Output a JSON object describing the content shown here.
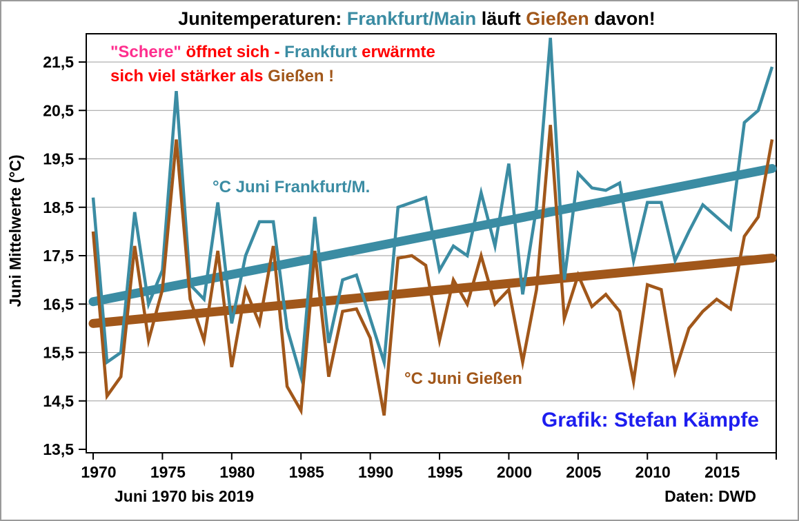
{
  "frame": {
    "background": "#ffffff",
    "border_color": "#9a9a9a"
  },
  "colors": {
    "frankfurt_teal": "#3b8ca3",
    "giessen_brown": "#a1571a",
    "annotation_red": "#ff0000",
    "annotation_pink": "#ff2e8e",
    "credit_blue": "#1d1def",
    "grid_gray": "#9b9b9b",
    "axis_black": "#000000"
  },
  "title": {
    "segments": [
      {
        "text": "Junitemperaturen: ",
        "color": "#000000"
      },
      {
        "text": "Frankfurt/Main",
        "color": "#3b8ca3"
      },
      {
        "text": " läuft ",
        "color": "#000000"
      },
      {
        "text": "Gießen",
        "color": "#a1571a"
      },
      {
        "text": " davon!",
        "color": "#000000"
      }
    ]
  },
  "annotation": {
    "line1": [
      {
        "text": "\"Schere\"",
        "color": "#ff2e8e"
      },
      {
        "text": " öffnet sich - ",
        "color": "#ff0000"
      },
      {
        "text": "Frankfurt",
        "color": "#3b8ca3"
      },
      {
        "text": " erwärmte",
        "color": "#ff0000"
      }
    ],
    "line2": [
      {
        "text": "sich viel stärker als ",
        "color": "#ff0000"
      },
      {
        "text": "Gießen !",
        "color": "#a1571a"
      }
    ]
  },
  "legend": {
    "frankfurt": {
      "label": "°C Juni Frankfurt/M.",
      "color": "#3b8ca3"
    },
    "giessen": {
      "label": "°C Juni Gießen",
      "color": "#a1571a"
    }
  },
  "credit": {
    "text": "Grafik: Stefan Kämpfe",
    "color": "#1d1def"
  },
  "footer": {
    "left": "Juni 1970 bis 2019",
    "right": "Daten: DWD"
  },
  "y_axis": {
    "title": "Juni Mittelwerte (°C)",
    "tick_labels": [
      "21,5",
      "20,5",
      "19,5",
      "18,5",
      "17,5",
      "16,5",
      "15,5",
      "14,5",
      "13,5"
    ],
    "tick_values": [
      21.5,
      20.5,
      19.5,
      18.5,
      17.5,
      16.5,
      15.5,
      14.5,
      13.5
    ]
  },
  "x_axis": {
    "tick_labels": [
      "1970",
      "1975",
      "1980",
      "1985",
      "1990",
      "1995",
      "2000",
      "2005",
      "2010",
      "2015"
    ],
    "tick_values": [
      1970,
      1975,
      1980,
      1985,
      1990,
      1995,
      2000,
      2005,
      2010,
      2015
    ]
  },
  "chart_data": {
    "type": "line",
    "title": "Junitemperaturen: Frankfurt/Main läuft Gießen davon!",
    "xlabel": "Juni 1970 bis 2019",
    "ylabel": "Juni Mittelwerte (°C)",
    "ylim": [
      13.5,
      22.1
    ],
    "grid": "horizontal",
    "years": [
      1970,
      1971,
      1972,
      1973,
      1974,
      1975,
      1976,
      1977,
      1978,
      1979,
      1980,
      1981,
      1982,
      1983,
      1984,
      1985,
      1986,
      1987,
      1988,
      1989,
      1990,
      1991,
      1992,
      1993,
      1994,
      1995,
      1996,
      1997,
      1998,
      1999,
      2000,
      2001,
      2002,
      2003,
      2004,
      2005,
      2006,
      2007,
      2008,
      2009,
      2010,
      2011,
      2012,
      2013,
      2014,
      2015,
      2016,
      2017,
      2018,
      2019
    ],
    "series": [
      {
        "name": "°C Juni Frankfurt/M.",
        "color": "#3b8ca3",
        "values": [
          18.7,
          15.3,
          15.5,
          18.4,
          16.5,
          17.2,
          20.9,
          16.9,
          16.6,
          18.6,
          16.1,
          17.5,
          18.2,
          18.2,
          16.0,
          15.0,
          18.3,
          15.7,
          17.0,
          17.1,
          16.2,
          15.3,
          18.5,
          18.6,
          18.7,
          17.2,
          17.7,
          17.5,
          18.8,
          17.7,
          19.4,
          16.7,
          18.5,
          22.0,
          17.0,
          19.2,
          18.9,
          18.85,
          19.0,
          17.4,
          18.6,
          18.6,
          17.4,
          18.0,
          18.55,
          18.3,
          18.05,
          20.25,
          20.5,
          21.4
        ]
      },
      {
        "name": "°C Juni Gießen",
        "color": "#a1571a",
        "values": [
          18.0,
          14.6,
          15.0,
          17.7,
          15.75,
          16.8,
          19.9,
          16.6,
          15.75,
          17.6,
          15.2,
          16.8,
          16.1,
          17.7,
          14.8,
          14.3,
          17.6,
          15.0,
          16.35,
          16.4,
          15.8,
          14.2,
          17.45,
          17.5,
          17.3,
          15.75,
          17.0,
          16.5,
          17.5,
          16.5,
          16.8,
          15.3,
          16.8,
          20.2,
          16.2,
          17.1,
          16.45,
          16.7,
          16.35,
          14.9,
          16.9,
          16.8,
          15.1,
          16.0,
          16.35,
          16.6,
          16.4,
          17.9,
          18.3,
          19.9
        ]
      }
    ],
    "trend_lines": [
      {
        "name": "Frankfurt linear trend",
        "color": "#3b8ca3",
        "start_value": 16.55,
        "end_value": 19.3
      },
      {
        "name": "Gießen linear trend",
        "color": "#a1571a",
        "start_value": 16.1,
        "end_value": 17.45
      }
    ]
  }
}
